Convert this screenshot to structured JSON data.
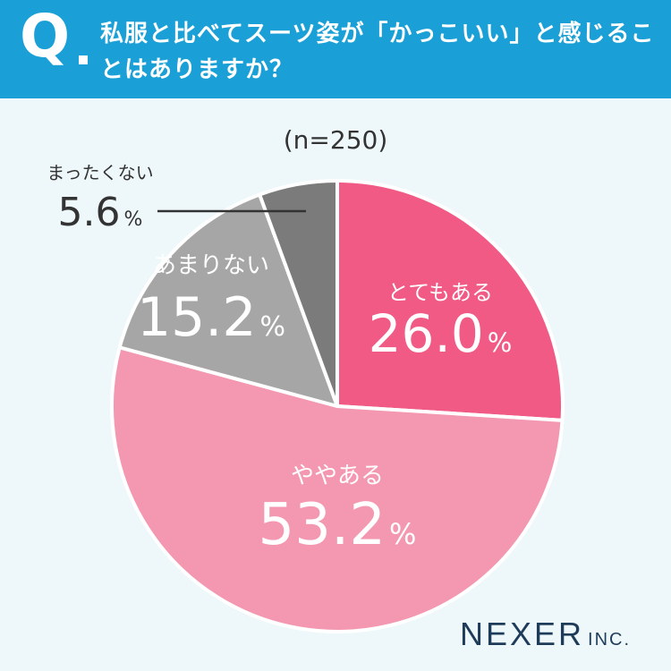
{
  "header": {
    "q_label": "Q",
    "question": "私服と比べてスーツ姿が「かっこいい」と感じることはありますか？"
  },
  "sample_label": "(n=250)",
  "brand": {
    "name": "NEXER",
    "suffix": "INC."
  },
  "colors": {
    "header_bg": "#1aa0d6",
    "page_bg": "#eef8fa",
    "slice_1": "#f05a84",
    "slice_2": "#f497b0",
    "slice_3": "#a6a6a6",
    "slice_4": "#7b7b7b"
  },
  "chart_data": {
    "type": "pie",
    "unit": "%",
    "slices": [
      {
        "label": "とてもある",
        "value": 26.0,
        "display": "26.0",
        "color": "#f05a84"
      },
      {
        "label": "ややある",
        "value": 53.2,
        "display": "53.2",
        "color": "#f497b0"
      },
      {
        "label": "あまりない",
        "value": 15.2,
        "display": "15.2",
        "color": "#a6a6a6"
      },
      {
        "label": "まったくない",
        "value": 5.6,
        "display": "5.6",
        "color": "#7b7b7b"
      }
    ]
  }
}
